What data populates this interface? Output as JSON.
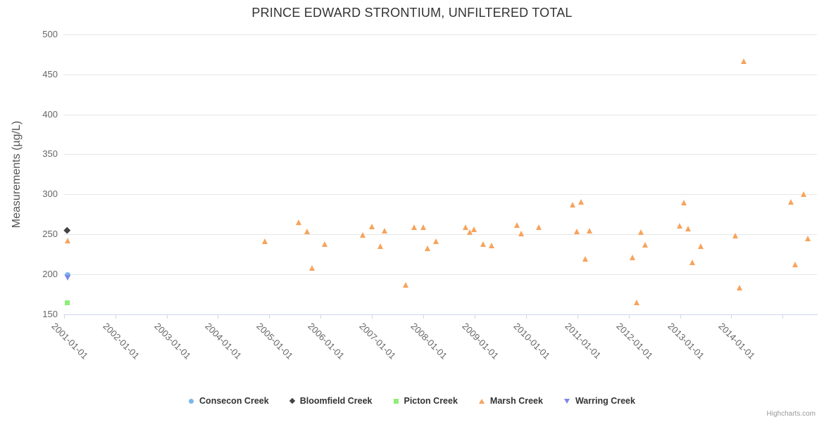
{
  "chart_data": {
    "type": "scatter",
    "title": "PRINCE EDWARD STRONTIUM, UNFILTERED TOTAL",
    "ylabel": "Measurements (µg/L)",
    "xlabel": "",
    "ylim": [
      150,
      500
    ],
    "y_ticks": [
      150,
      200,
      250,
      300,
      350,
      400,
      450,
      500
    ],
    "x_tick_labels": [
      "2001-01-01",
      "2002-01-01",
      "2003-01-01",
      "2004-01-01",
      "2005-01-01",
      "2006-01-01",
      "2007-01-01",
      "2008-01-01",
      "2009-01-01",
      "2010-01-01",
      "2011-01-01",
      "2012-01-01",
      "2013-01-01",
      "2014-01-01"
    ],
    "grid": true,
    "legend_position": "bottom",
    "credits": "Highcharts.com",
    "colors": {
      "gridline": "#e6e6e6",
      "axis_line": "#ccd6eb",
      "axis_labels": "#666666",
      "title": "#333333"
    },
    "series": [
      {
        "name": "Consecon Creek",
        "marker": "circle",
        "color": "#7cb5ec",
        "data": [
          [
            "2001-02",
            199
          ]
        ]
      },
      {
        "name": "Bloomfield Creek",
        "marker": "diamond",
        "color": "#434348",
        "data": [
          [
            "2001-02",
            255
          ]
        ]
      },
      {
        "name": "Picton Creek",
        "marker": "square",
        "color": "#90ed7d",
        "data": [
          [
            "2001-02",
            164
          ]
        ]
      },
      {
        "name": "Marsh Creek",
        "marker": "triangle",
        "color": "#f7a35c",
        "data": [
          [
            "2001-02",
            242
          ],
          [
            "2004-12",
            241
          ],
          [
            "2005-08",
            265
          ],
          [
            "2005-10",
            254
          ],
          [
            "2005-11",
            208
          ],
          [
            "2006-02",
            238
          ],
          [
            "2006-11",
            249
          ],
          [
            "2007-01",
            260
          ],
          [
            "2007-03",
            235
          ],
          [
            "2007-04",
            255
          ],
          [
            "2007-09",
            187
          ],
          [
            "2007-11",
            259
          ],
          [
            "2008-01",
            259
          ],
          [
            "2008-02",
            233
          ],
          [
            "2008-04",
            241
          ],
          [
            "2008-11",
            259
          ],
          [
            "2008-12",
            253
          ],
          [
            "2009-01",
            256
          ],
          [
            "2009-03",
            238
          ],
          [
            "2009-05",
            236
          ],
          [
            "2009-11",
            262
          ],
          [
            "2009-12",
            251
          ],
          [
            "2010-04",
            259
          ],
          [
            "2010-12",
            287
          ],
          [
            "2011-01",
            254
          ],
          [
            "2011-02",
            291
          ],
          [
            "2011-03",
            219
          ],
          [
            "2011-04",
            255
          ],
          [
            "2012-02",
            221
          ],
          [
            "2012-03",
            165
          ],
          [
            "2012-04",
            253
          ],
          [
            "2012-05",
            237
          ],
          [
            "2013-01",
            261
          ],
          [
            "2013-02",
            290
          ],
          [
            "2013-03",
            257
          ],
          [
            "2013-04",
            215
          ],
          [
            "2013-06",
            235
          ],
          [
            "2014-02",
            248
          ],
          [
            "2014-03",
            183
          ],
          [
            "2014-04",
            466
          ],
          [
            "2015-03",
            291
          ],
          [
            "2015-04",
            212
          ],
          [
            "2015-06",
            300
          ],
          [
            "2015-07",
            245
          ]
        ]
      },
      {
        "name": "Warring Creek",
        "marker": "triangle-down",
        "color": "#8085e9",
        "data": [
          [
            "2001-02",
            196
          ]
        ]
      }
    ]
  }
}
